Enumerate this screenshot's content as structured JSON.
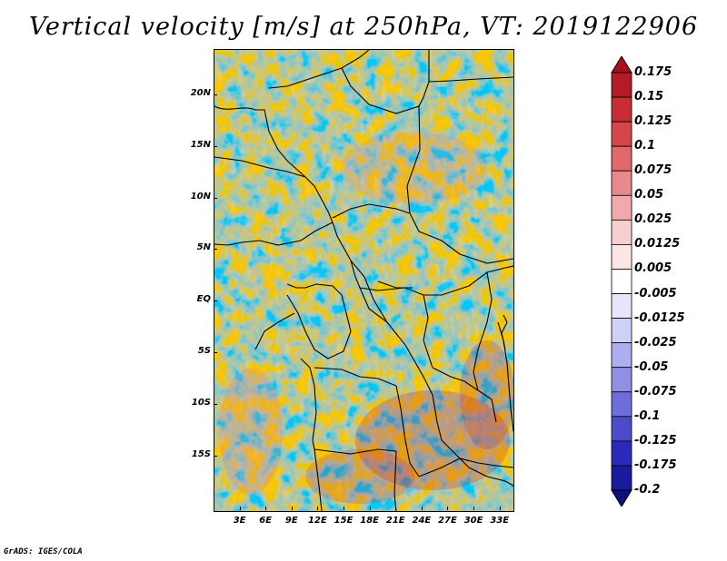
{
  "title": "Vertical velocity [m/s] at 250hPa, VT: 2019122906",
  "credit": "GrADS: IGES/COLA",
  "map": {
    "lat_labels": [
      "20N",
      "15N",
      "10N",
      "5N",
      "EQ",
      "5S",
      "10S",
      "15S"
    ],
    "lon_labels": [
      "3E",
      "6E",
      "9E",
      "12E",
      "15E",
      "18E",
      "21E",
      "24E",
      "27E",
      "30E",
      "33E"
    ],
    "lat_values": [
      20,
      15,
      10,
      5,
      0,
      -5,
      -10,
      -15
    ],
    "lon_values": [
      3,
      6,
      9,
      12,
      15,
      18,
      21,
      24,
      27,
      30,
      33
    ],
    "lon_range": [
      0,
      34.5
    ],
    "lat_range": [
      -20.3,
      24.4
    ]
  },
  "colorbar": {
    "labels": [
      "0.175",
      "0.15",
      "0.125",
      "0.1",
      "0.075",
      "0.05",
      "0.025",
      "0.0125",
      "0.005",
      "-0.005",
      "-0.0125",
      "-0.025",
      "-0.05",
      "-0.075",
      "-0.1",
      "-0.125",
      "-0.175",
      "-0.2"
    ],
    "colors": [
      "#a50f1e",
      "#b51b26",
      "#c72d33",
      "#d6454a",
      "#e0686b",
      "#e88a8c",
      "#f0aaab",
      "#f8cfd0",
      "#fbe6e7",
      "#ffffff",
      "#e6e6fb",
      "#cfcff8",
      "#aeaef0",
      "#8f8fe6",
      "#6e6edb",
      "#4c4ccb",
      "#2a2ab8",
      "#1a1a9c",
      "#0f0f80"
    ]
  }
}
